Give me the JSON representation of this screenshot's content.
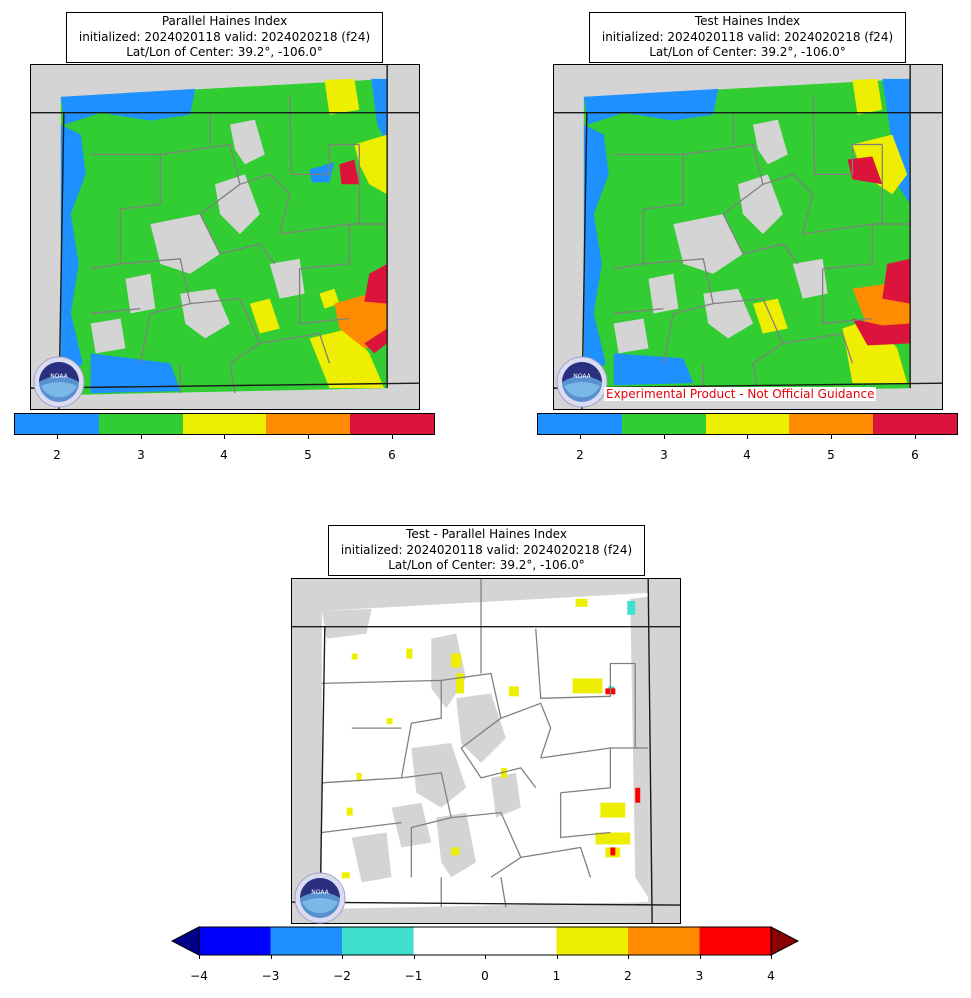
{
  "panels": [
    {
      "title_lines": [
        "Parallel Haines Index",
        "initialized: 2024020118 valid: 2024020218 (f24)",
        "Lat/Lon of Center: 39.2°, -106.0°"
      ],
      "colorbar": {
        "colors": [
          "#1e90ff",
          "#32cd32",
          "#eeee00",
          "#ff8c00",
          "#dc143c"
        ],
        "ticks": [
          "2",
          "3",
          "4",
          "5",
          "6"
        ]
      }
    },
    {
      "title_lines": [
        "Test Haines Index",
        "initialized: 2024020118 valid: 2024020218 (f24)",
        "Lat/Lon of Center: 39.2°, -106.0°"
      ],
      "disclaimer": "Experimental Product - Not Official Guidance",
      "colorbar": {
        "colors": [
          "#1e90ff",
          "#32cd32",
          "#eeee00",
          "#ff8c00",
          "#dc143c"
        ],
        "ticks": [
          "2",
          "3",
          "4",
          "5",
          "6"
        ]
      }
    },
    {
      "title_lines": [
        "Test - Parallel Haines Index",
        "initialized: 2024020118 valid: 2024020218 (f24)",
        "Lat/Lon of Center: 39.2°, -106.0°"
      ],
      "colorbar": {
        "colors": [
          "#0000ff",
          "#1e90ff",
          "#40e0d0",
          "#ffffff",
          "#ffffff",
          "#eeee00",
          "#ff8c00",
          "#ff0000"
        ],
        "extend_low_color": "#00008b",
        "extend_high_color": "#8b0000",
        "ticks": [
          "−4",
          "−3",
          "−2",
          "−1",
          "0",
          "1",
          "2",
          "3",
          "4"
        ]
      }
    }
  ],
  "logo_label": "NOAA",
  "colors": {
    "background_gray": "#d4d4d4",
    "county_lines": "#808080",
    "state_lines": "#1a1a1a"
  }
}
